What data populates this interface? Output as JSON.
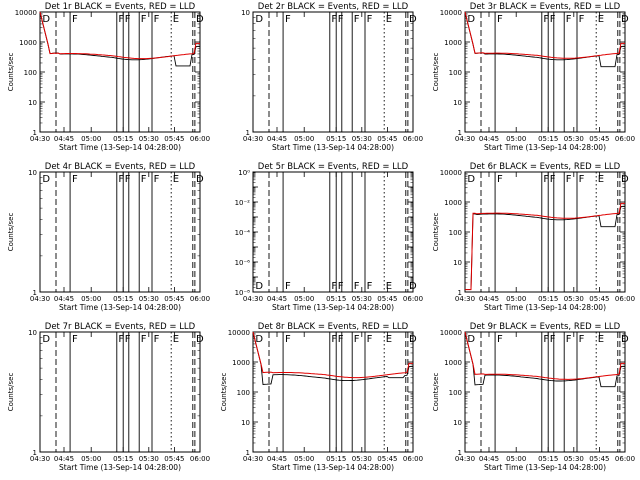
{
  "figure": {
    "xlabel": "Start Time (13-Sep-14 04:28:00)",
    "ylabel": "Counts/sec",
    "x_tick_labels": [
      "04:30",
      "04:45",
      "05:00",
      "05:15",
      "05:30",
      "05:45",
      "06:00"
    ]
  },
  "colors": {
    "events": "#000000",
    "lld": "#e00000",
    "axes": "#000000"
  },
  "chart_data": [
    {
      "type": "line",
      "title": "Det 1r BLACK = Events, RED = LLD",
      "yscale": "log",
      "ylim": [
        1,
        10000
      ],
      "y_tick_labels": [
        "1",
        "10",
        "100",
        "1000",
        "10000"
      ],
      "ylabel": "Counts/sec",
      "xlabel": "Start Time (13-Sep-14 04:28:00)",
      "has_data": true,
      "variant": "normal",
      "events_level": 350,
      "lld_level": 370,
      "dip_level": 160,
      "early_dip": false,
      "marker_labels": [
        "D",
        "F",
        "F",
        "F",
        "F",
        "F",
        "E",
        "D"
      ],
      "series": [
        {
          "name": "BLACK = Events"
        },
        {
          "name": "RED = LLD"
        }
      ]
    },
    {
      "type": "line",
      "title": "Det 2r BLACK = Events, RED = LLD",
      "yscale": "log",
      "ylim": [
        1,
        10
      ],
      "y_tick_labels": [
        "1",
        "10"
      ],
      "ylabel": "",
      "xlabel": "Start Time (13-Sep-14 04:28:00)",
      "has_data": false,
      "variant": "empty",
      "marker_labels": [
        "D",
        "F",
        "F",
        "F",
        "F",
        "F",
        "E",
        "D"
      ],
      "series": [
        {
          "name": "BLACK = Events"
        },
        {
          "name": "RED = LLD"
        }
      ]
    },
    {
      "type": "line",
      "title": "Det 3r BLACK = Events, RED = LLD",
      "yscale": "log",
      "ylim": [
        1,
        10000
      ],
      "y_tick_labels": [
        "1",
        "10",
        "100",
        "1000",
        "10000"
      ],
      "ylabel": "Counts/sec",
      "xlabel": "Start Time (13-Sep-14 04:28:00)",
      "has_data": true,
      "variant": "normal",
      "events_level": 350,
      "lld_level": 380,
      "dip_level": 150,
      "early_dip": false,
      "marker_labels": [
        "D",
        "F",
        "F",
        "F",
        "F",
        "F",
        "E",
        "D"
      ],
      "series": [
        {
          "name": "BLACK = Events"
        },
        {
          "name": "RED = LLD"
        }
      ]
    },
    {
      "type": "line",
      "title": "Det 4r BLACK = Events, RED = LLD",
      "yscale": "log",
      "ylim": [
        1,
        10
      ],
      "y_tick_labels": [
        "1",
        "10"
      ],
      "ylabel": "Counts/sec",
      "xlabel": "Start Time (13-Sep-14 04:28:00)",
      "has_data": false,
      "variant": "empty",
      "marker_labels": [
        "D",
        "F",
        "F",
        "F",
        "F",
        "F",
        "E",
        "D"
      ],
      "series": [
        {
          "name": "BLACK = Events"
        },
        {
          "name": "RED = LLD"
        }
      ]
    },
    {
      "type": "line",
      "title": "Det 5r BLACK = Events, RED = LLD",
      "yscale": "log",
      "ylim": [
        1e-08,
        1
      ],
      "y_tick_labels": [
        "10⁰",
        "10⁻²",
        "10⁻⁴",
        "10⁻⁶",
        "10⁻⁸"
      ],
      "ylabel": "",
      "xlabel": "Start Time (13-Sep-14 04:28:00)",
      "has_data": false,
      "variant": "empty",
      "marker_labels": [
        "D",
        "F",
        "F",
        "F",
        "F",
        "F",
        "E",
        "D"
      ],
      "series": [
        {
          "name": "BLACK = Events"
        },
        {
          "name": "RED = LLD"
        }
      ]
    },
    {
      "type": "line",
      "title": "Det 6r BLACK = Events, RED = LLD",
      "yscale": "log",
      "ylim": [
        1,
        10000
      ],
      "y_tick_labels": [
        "1",
        "10",
        "100",
        "1000",
        "10000"
      ],
      "ylabel": "Counts/sec",
      "xlabel": "Start Time (13-Sep-14 04:28:00)",
      "has_data": true,
      "variant": "rise",
      "events_level": 350,
      "lld_level": 380,
      "dip_level": 150,
      "early_dip": false,
      "marker_labels": [
        "D",
        "F",
        "F",
        "F",
        "F",
        "F",
        "E",
        "D"
      ],
      "series": [
        {
          "name": "BLACK = Events"
        },
        {
          "name": "RED = LLD"
        }
      ]
    },
    {
      "type": "line",
      "title": "Det 7r BLACK = Events, RED = LLD",
      "yscale": "log",
      "ylim": [
        1,
        10
      ],
      "y_tick_labels": [
        "1",
        "10"
      ],
      "ylabel": "Counts/sec",
      "xlabel": "Start Time (13-Sep-14 04:28:00)",
      "has_data": false,
      "variant": "empty",
      "marker_labels": [
        "D",
        "F",
        "F",
        "F",
        "F",
        "F",
        "E",
        "D"
      ],
      "series": [
        {
          "name": "BLACK = Events"
        },
        {
          "name": "RED = LLD"
        }
      ]
    },
    {
      "type": "line",
      "title": "Det 8r BLACK = Events, RED = LLD",
      "yscale": "log",
      "ylim": [
        1,
        10000
      ],
      "y_tick_labels": [
        "1",
        "10",
        "100",
        "1000",
        "10000"
      ],
      "ylabel": "Counts/sec",
      "xlabel": "Start Time (13-Sep-14 04:28:00)",
      "has_data": true,
      "variant": "normal",
      "events_level": 330,
      "lld_level": 400,
      "dip_level": 300,
      "early_dip": true,
      "marker_labels": [
        "D",
        "F",
        "F",
        "F",
        "F",
        "F",
        "E",
        "D"
      ],
      "series": [
        {
          "name": "BLACK = Events"
        },
        {
          "name": "RED = LLD"
        }
      ]
    },
    {
      "type": "line",
      "title": "Det 9r BLACK = Events, RED = LLD",
      "yscale": "log",
      "ylim": [
        1,
        10000
      ],
      "y_tick_labels": [
        "1",
        "10",
        "100",
        "1000",
        "10000"
      ],
      "ylabel": "Counts/sec",
      "xlabel": "Start Time (13-Sep-14 04:28:00)",
      "has_data": true,
      "variant": "normal",
      "events_level": 320,
      "lld_level": 350,
      "dip_level": 150,
      "early_dip": true,
      "marker_labels": [
        "D",
        "F",
        "F",
        "F",
        "F",
        "F",
        "E",
        "D"
      ],
      "series": [
        {
          "name": "BLACK = Events"
        },
        {
          "name": "RED = LLD"
        }
      ]
    }
  ]
}
